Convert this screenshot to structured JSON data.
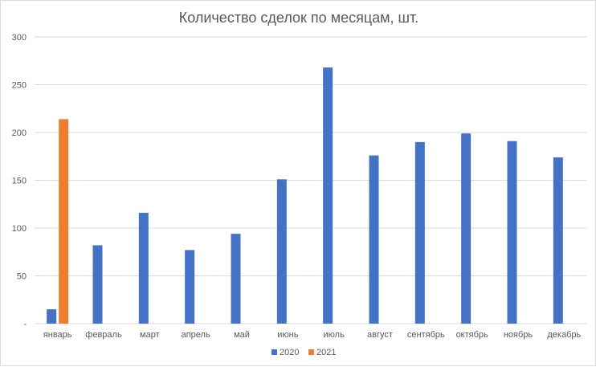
{
  "chart_data": {
    "type": "bar",
    "title": "Количество сделок по месяцам, шт.",
    "xlabel": "",
    "ylabel": "",
    "categories": [
      "январь",
      "февраль",
      "март",
      "апрель",
      "май",
      "июнь",
      "июль",
      "август",
      "сентябрь",
      "октябрь",
      "ноябрь",
      "декабрь"
    ],
    "series": [
      {
        "name": "2020",
        "color": "#4472C4",
        "values": [
          15,
          82,
          116,
          77,
          94,
          151,
          268,
          176,
          190,
          199,
          191,
          174
        ]
      },
      {
        "name": "2021",
        "color": "#ED7D31",
        "values": [
          214,
          null,
          null,
          null,
          null,
          null,
          null,
          null,
          null,
          null,
          null,
          null
        ]
      }
    ],
    "ylim": [
      0,
      300
    ],
    "yticks": [
      "-",
      "50",
      "100",
      "150",
      "200",
      "250",
      "300"
    ],
    "grid": true,
    "legend_position": "bottom"
  }
}
